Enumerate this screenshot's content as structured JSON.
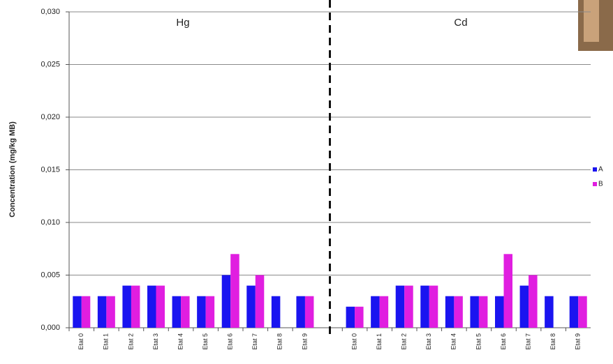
{
  "chart_data": {
    "type": "bar",
    "y_label": "Concentration (mg/kg MB)",
    "annotations": [
      "Hg",
      "Cd"
    ],
    "categories": [
      "Etat 0",
      "Etat 1",
      "Etat 2",
      "Etat 3",
      "Etat 4",
      "Etat 5",
      "Etat 6",
      "Etat 7",
      "Etat 8",
      "Etat 9",
      null,
      "Etat 0",
      "Etat 1",
      "Etat 2",
      "Etat 3",
      "Etat 4",
      "Etat 5",
      "Etat 6",
      "Etat 7",
      "Etat 8",
      "Etat 9"
    ],
    "series": [
      {
        "name": "A",
        "color": "#1a14f0",
        "values": [
          0.003,
          0.003,
          0.004,
          0.004,
          0.003,
          0.003,
          0.005,
          0.004,
          0.003,
          0.003,
          null,
          0.002,
          0.003,
          0.004,
          0.004,
          0.003,
          0.003,
          0.003,
          0.004,
          0.003,
          0.003
        ]
      },
      {
        "name": "B",
        "color": "#e01ee0",
        "values": [
          0.003,
          0.003,
          0.004,
          0.004,
          0.003,
          0.003,
          0.007,
          0.005,
          null,
          0.003,
          null,
          0.002,
          0.003,
          0.004,
          0.004,
          0.003,
          0.003,
          0.007,
          0.005,
          null,
          0.003
        ]
      }
    ],
    "ylim": [
      0,
      0.03
    ],
    "yticks": [
      {
        "value": 0,
        "label": "0,000"
      },
      {
        "value": 0.005,
        "label": "0,005"
      },
      {
        "value": 0.01,
        "label": "0,010"
      },
      {
        "value": 0.015,
        "label": "0,015"
      },
      {
        "value": 0.02,
        "label": "0,020"
      },
      {
        "value": 0.025,
        "label": "0,025"
      },
      {
        "value": 0.03,
        "label": "0,030"
      }
    ],
    "grid": true,
    "legend": "right"
  }
}
